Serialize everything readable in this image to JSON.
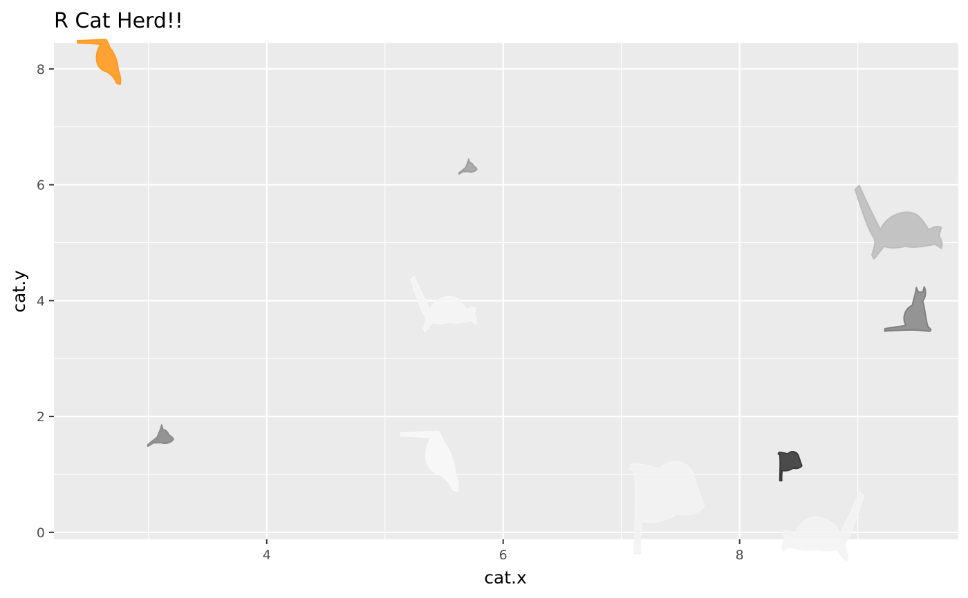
{
  "chart_data": {
    "type": "scatter",
    "title": "R Cat Herd!!",
    "xlabel": "cat.x",
    "ylabel": "cat.y",
    "xlim": [
      2.2,
      9.85
    ],
    "ylim": [
      -0.12,
      8.45
    ],
    "x_ticks": [
      4,
      6,
      8
    ],
    "y_ticks": [
      0,
      2,
      4,
      6,
      8
    ],
    "x_minor": [
      3,
      5,
      7,
      9
    ],
    "y_minor": [
      1,
      3,
      5,
      7
    ],
    "grid": true,
    "background": "#ebebeb",
    "points": [
      {
        "x": 2.6,
        "y": 8.1,
        "size": 0.9,
        "fill": "#ff9a1f",
        "opacity": 0.9,
        "pose": "stretch",
        "flip": false
      },
      {
        "x": 5.7,
        "y": 6.3,
        "size": 0.35,
        "fill": "#9a9a9a",
        "opacity": 0.8,
        "pose": "crouch",
        "flip": false
      },
      {
        "x": 9.35,
        "y": 5.3,
        "size": 1.6,
        "fill": "#b9b9b9",
        "opacity": 0.8,
        "pose": "leap",
        "flip": false
      },
      {
        "x": 5.5,
        "y": 3.9,
        "size": 1.2,
        "fill": "#f6f6f6",
        "opacity": 0.85,
        "pose": "leap",
        "flip": false
      },
      {
        "x": 9.45,
        "y": 3.9,
        "size": 1.0,
        "fill": "#777777",
        "opacity": 0.75,
        "pose": "sit",
        "flip": false
      },
      {
        "x": 3.1,
        "y": 1.65,
        "size": 0.5,
        "fill": "#8a8a8a",
        "opacity": 0.9,
        "pose": "crouch",
        "flip": false
      },
      {
        "x": 5.4,
        "y": 1.2,
        "size": 1.2,
        "fill": "#f8f8f8",
        "opacity": 0.9,
        "pose": "stretch",
        "flip": false
      },
      {
        "x": 8.4,
        "y": 1.15,
        "size": 0.6,
        "fill": "#3a3a3a",
        "opacity": 0.9,
        "pose": "tail",
        "flip": false
      },
      {
        "x": 7.3,
        "y": 0.45,
        "size": 1.9,
        "fill": "#f3f3f3",
        "opacity": 0.85,
        "pose": "tail",
        "flip": false
      },
      {
        "x": 8.7,
        "y": 0.05,
        "size": 1.5,
        "fill": "#f3f3f3",
        "opacity": 0.85,
        "pose": "leap",
        "flip": true
      }
    ]
  }
}
